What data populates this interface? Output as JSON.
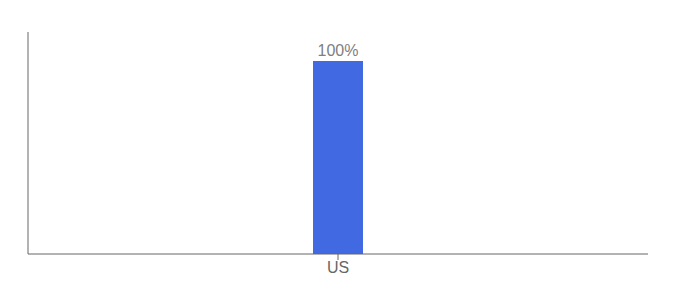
{
  "chart_data": {
    "type": "bar",
    "categories": [
      "US"
    ],
    "values": [
      100
    ],
    "value_labels": [
      "100%"
    ],
    "data_labels": true,
    "color": "#4169e1",
    "ylim": [
      0,
      115
    ],
    "tick_labels": "x",
    "grid": false
  }
}
